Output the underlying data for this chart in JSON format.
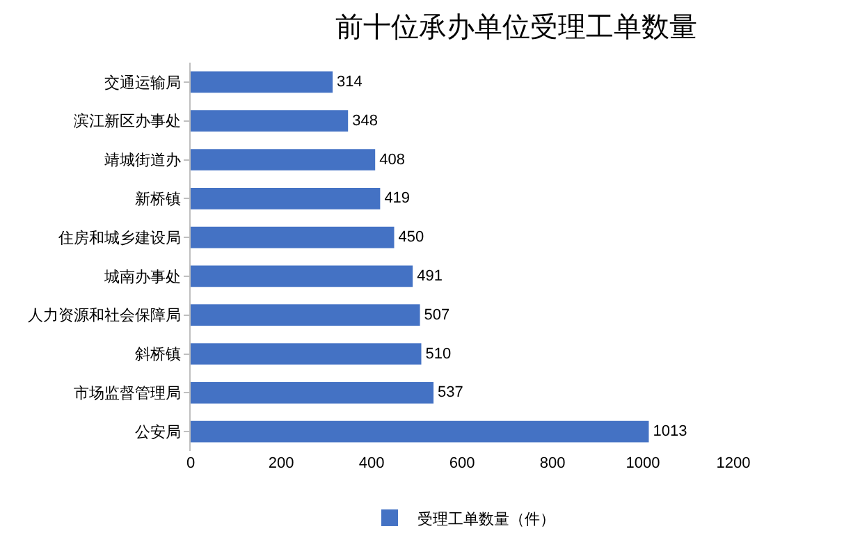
{
  "chart_data": {
    "type": "bar",
    "title": "前十位承办单位受理工单数量",
    "orientation": "horizontal",
    "categories": [
      "交通运输局",
      "滨江新区办事处",
      "靖城街道办",
      "新桥镇",
      "住房和城乡建设局",
      "城南办事处",
      "人力资源和社会保障局",
      "斜桥镇",
      "市场监督管理局",
      "公安局"
    ],
    "series": [
      {
        "name": "受理工单数量（件）",
        "color": "#4472c4",
        "values": [
          314,
          348,
          408,
          419,
          450,
          491,
          507,
          510,
          537,
          1013
        ]
      }
    ],
    "xlim": [
      0,
      1200
    ],
    "xticks": [
      0,
      200,
      400,
      600,
      800,
      1000,
      1200
    ],
    "grid": false,
    "legend": "bottom",
    "data_labels": true
  }
}
